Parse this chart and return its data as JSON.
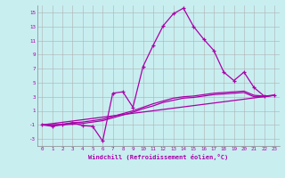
{
  "xlabel": "Windchill (Refroidissement éolien,°C)",
  "background_color": "#c8eef0",
  "grid_color": "#b0b0b0",
  "line_color": "#aa00aa",
  "xlim": [
    -0.5,
    23.5
  ],
  "ylim": [
    -4,
    16
  ],
  "xticks": [
    0,
    1,
    2,
    3,
    4,
    5,
    6,
    7,
    8,
    9,
    10,
    11,
    12,
    13,
    14,
    15,
    16,
    17,
    18,
    19,
    20,
    21,
    22,
    23
  ],
  "yticks": [
    -3,
    -1,
    1,
    3,
    5,
    7,
    9,
    11,
    13,
    15
  ],
  "line1_x": [
    0,
    1,
    2,
    3,
    4,
    5,
    6,
    7,
    8,
    9,
    10,
    11,
    12,
    13,
    14,
    15,
    16,
    17,
    18,
    19,
    20,
    21,
    22,
    23
  ],
  "line1_y": [
    -1,
    -1.2,
    -1,
    -0.7,
    -1.1,
    -1.2,
    -3.3,
    3.5,
    3.7,
    1.5,
    7.3,
    10.3,
    13.1,
    14.8,
    15.6,
    13.0,
    11.2,
    9.6,
    6.5,
    5.3,
    6.5,
    4.3,
    3.1,
    3.2
  ],
  "line2_x": [
    0,
    23
  ],
  "line2_y": [
    -1,
    3.2
  ],
  "line3_x": [
    0,
    1,
    2,
    3,
    4,
    5,
    6,
    7,
    8,
    9,
    10,
    11,
    12,
    13,
    14,
    15,
    16,
    17,
    18,
    19,
    20,
    21,
    22,
    23
  ],
  "line3_y": [
    -1,
    -1.0,
    -0.9,
    -0.7,
    -0.6,
    -0.4,
    -0.2,
    0.2,
    0.6,
    1.0,
    1.5,
    2.0,
    2.4,
    2.8,
    3.0,
    3.1,
    3.3,
    3.5,
    3.6,
    3.7,
    3.8,
    3.2,
    3.1,
    3.2
  ],
  "line4_x": [
    0,
    1,
    2,
    3,
    4,
    5,
    6,
    7,
    8,
    9,
    10,
    11,
    12,
    13,
    14,
    15,
    16,
    17,
    18,
    19,
    20,
    21,
    22,
    23
  ],
  "line4_y": [
    -1,
    -1.0,
    -1.0,
    -0.9,
    -0.8,
    -0.6,
    -0.4,
    -0.0,
    0.4,
    0.8,
    1.3,
    1.7,
    2.2,
    2.5,
    2.8,
    2.9,
    3.1,
    3.3,
    3.4,
    3.5,
    3.6,
    3.0,
    3.0,
    3.2
  ]
}
